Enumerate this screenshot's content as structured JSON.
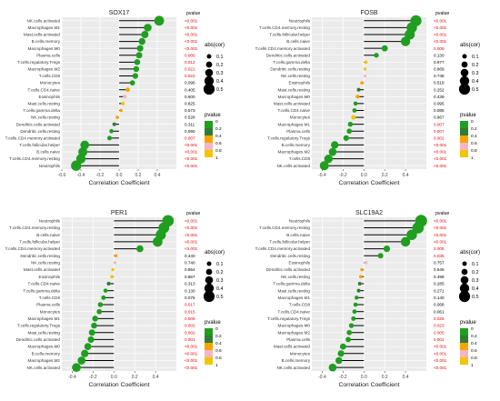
{
  "colors": {
    "green": "#1f9e1f",
    "darkgreen": "#2e7d32",
    "orange": "#f7a400",
    "yellow": "#f2c500",
    "pink": "#f4b6c2",
    "red": "#e60000",
    "black": "#000000",
    "panel": "#ebebeb"
  },
  "common": {
    "xlabel": "Correlation Coefficient",
    "pvalue_header": "pvalue",
    "size_legend_title": "abs(cor)",
    "size_legend_values": [
      "0.1",
      "0.2",
      "0.3",
      "0.4",
      "0.5"
    ],
    "color_legend_title": "pvalue",
    "color_legend_values": [
      "0",
      "0.2",
      "0.4",
      "0.6",
      "0.8",
      "1"
    ]
  },
  "chart_data": [
    {
      "type": "scatter",
      "title": "SOX17",
      "xlim": [
        -0.6,
        0.6
      ],
      "xticks": [
        "-0.6",
        "-0.4",
        "-0.2",
        "0.0",
        "0.2",
        "0.4"
      ],
      "categories": [
        "NK.cells.activated",
        "Macrophages.M1",
        "Mast.cells.activated",
        "B.cells.memory",
        "Macrophages.M0",
        "Plasma.cells",
        "T.cells.regulatory.Tregs",
        "Macrophages.M2",
        "T.cells.CD8",
        "Monocytes",
        "T.cells.CD4.naive",
        "Eosinophils",
        "Mast.cells.resting",
        "T.cells.gamma.delta",
        "NK.cells.resting",
        "Dendritic.cells.activated",
        "Dendritic.cells.resting",
        "T.cells.CD4.memory.activated",
        "T.cells.follicular.helper",
        "B.cells.naive",
        "T.cells.CD4.memory.resting",
        "Neutrophils"
      ],
      "values": [
        0.42,
        0.3,
        0.27,
        0.24,
        0.22,
        0.21,
        0.19,
        0.18,
        0.17,
        0.14,
        0.09,
        0.06,
        0.04,
        0.02,
        -0.02,
        -0.05,
        -0.08,
        -0.1,
        -0.36,
        -0.38,
        -0.4,
        -0.45
      ],
      "pvalues": [
        "<0.001",
        "<0.001",
        "<0.001",
        "<0.001",
        "<0.001",
        "0.005",
        "0.012",
        "0.021",
        "0.022",
        "0.096",
        "0.405",
        "0.600",
        "0.825",
        "0.573",
        "0.528",
        "0.311",
        "0.090",
        "0.007",
        "<0.001",
        "<0.001",
        "<0.001",
        "<0.001"
      ]
    },
    {
      "type": "scatter",
      "title": "FOSB",
      "xlim": [
        -0.5,
        0.6
      ],
      "xticks": [
        "-0.4",
        "-0.2",
        "0.0",
        "0.2",
        "0.4"
      ],
      "categories": [
        "Neutrophils",
        "T.cells.CD4.memory.resting",
        "T.cells.follicular.helper",
        "B.cells.naive",
        "T.cells.CD4.memory.activated",
        "Dendritic.cells.activated",
        "T.cells.gamma.delta",
        "Dendritic.cells.resting",
        "NK.cells.resting",
        "Eosinophils",
        "Mast.cells.resting",
        "Macrophages.M0",
        "Mast.cells.activated",
        "T.cells.CD4.naive",
        "Monocytes",
        "Macrophages.M1",
        "Plasma.cells",
        "T.cells.regulatory.Tregs",
        "B.cells.memory",
        "Macrophages.M2",
        "T.cells.CD8",
        "NK.cells.activated"
      ],
      "values": [
        0.5,
        0.46,
        0.44,
        0.4,
        0.2,
        0.12,
        0.02,
        0.01,
        0.01,
        -0.02,
        -0.05,
        -0.06,
        -0.08,
        -0.09,
        -0.1,
        -0.13,
        -0.14,
        -0.17,
        -0.28,
        -0.3,
        -0.34,
        -0.38
      ],
      "pvalues": [
        "<0.001",
        "<0.001",
        "<0.001",
        "<0.001",
        "0.009",
        "0.130",
        "0.977",
        "0.869",
        "0.748",
        "0.518",
        "0.252",
        "0.439",
        "0.095",
        "0.085",
        "0.967",
        "0.007",
        "0.007",
        "0.002",
        "<0.001",
        "<0.001",
        "<0.001",
        "<0.001"
      ]
    },
    {
      "type": "scatter",
      "title": "PER1",
      "xlim": [
        -0.5,
        0.6
      ],
      "xticks": [
        "-0.4",
        "-0.2",
        "0.0",
        "0.2",
        "0.4"
      ],
      "categories": [
        "Neutrophils",
        "T.cells.CD4.memory.resting",
        "B.cells.naive",
        "T.cells.follicular.helper",
        "T.cells.CD4.memory.activated",
        "Dendritic.cells.resting",
        "NK.cells.resting",
        "Mast.cells.activated",
        "Eosinophils",
        "T.cells.CD4.naive",
        "T.cells.gamma.delta",
        "T.cells.CD8",
        "Plasma.cells",
        "Monocytes",
        "Macrophages.M1",
        "T.cells.regulatory.Tregs",
        "Mast.cells.resting",
        "Dendritic.cells.activated",
        "Macrophages.M0",
        "B.cells.memory",
        "Macrophages.M2",
        "NK.cells.activated"
      ],
      "values": [
        0.52,
        0.48,
        0.45,
        0.42,
        0.25,
        0.02,
        0.01,
        -0.01,
        -0.02,
        -0.05,
        -0.08,
        -0.1,
        -0.13,
        -0.14,
        -0.18,
        -0.19,
        -0.21,
        -0.22,
        -0.25,
        -0.28,
        -0.31,
        -0.36
      ],
      "pvalues": [
        "<0.001",
        "<0.001",
        "<0.001",
        "<0.001",
        "<0.001",
        "0.440",
        "0.740",
        "0.854",
        "0.867",
        "0.313",
        "0.130",
        "0.076",
        "0.017",
        "0.015",
        "0.009",
        "0.002",
        "0.002",
        "0.001",
        "<0.001",
        "<0.001",
        "<0.001",
        "<0.001"
      ]
    },
    {
      "type": "scatter",
      "title": "SLC19A2",
      "xlim": [
        -0.5,
        0.6
      ],
      "xticks": [
        "-0.4",
        "-0.2",
        "0.0",
        "0.2",
        "0.4"
      ],
      "categories": [
        "Neutrophils",
        "T.cells.CD4.memory.resting",
        "B.cells.naive",
        "T.cells.follicular.helper",
        "T.cells.CD4.memory.activated",
        "Dendritic.cells.resting",
        "Eosinophils",
        "Dendritic.cells.activated",
        "NK.cells.resting",
        "T.cells.gamma.delta",
        "Mast.cells.resting",
        "Macrophages.M1",
        "T.cells.CD8",
        "T.cells.CD4.naive",
        "T.cells.regulatory.Tregs",
        "Macrophages.M0",
        "Macrophages.M2",
        "Plasma.cells",
        "Mast.cells.activated",
        "Monocytes",
        "B.cells.memory",
        "NK.cells.activated"
      ],
      "values": [
        0.55,
        0.52,
        0.46,
        0.4,
        0.22,
        0.16,
        0.02,
        -0.02,
        -0.03,
        -0.04,
        -0.05,
        -0.07,
        -0.08,
        -0.09,
        -0.1,
        -0.12,
        -0.14,
        -0.15,
        -0.2,
        -0.22,
        -0.24,
        -0.3
      ],
      "pvalues": [
        "<0.001",
        "<0.001",
        "<0.001",
        "<0.001",
        "0.005",
        "0.036",
        "0.757",
        "0.546",
        "0.499",
        "0.285",
        "0.271",
        "0.140",
        "0.068",
        "0.061",
        "0.026",
        "0.023",
        "0.005",
        "0.002",
        "<0.001",
        "<0.001",
        "<0.001",
        "<0.001"
      ]
    }
  ]
}
